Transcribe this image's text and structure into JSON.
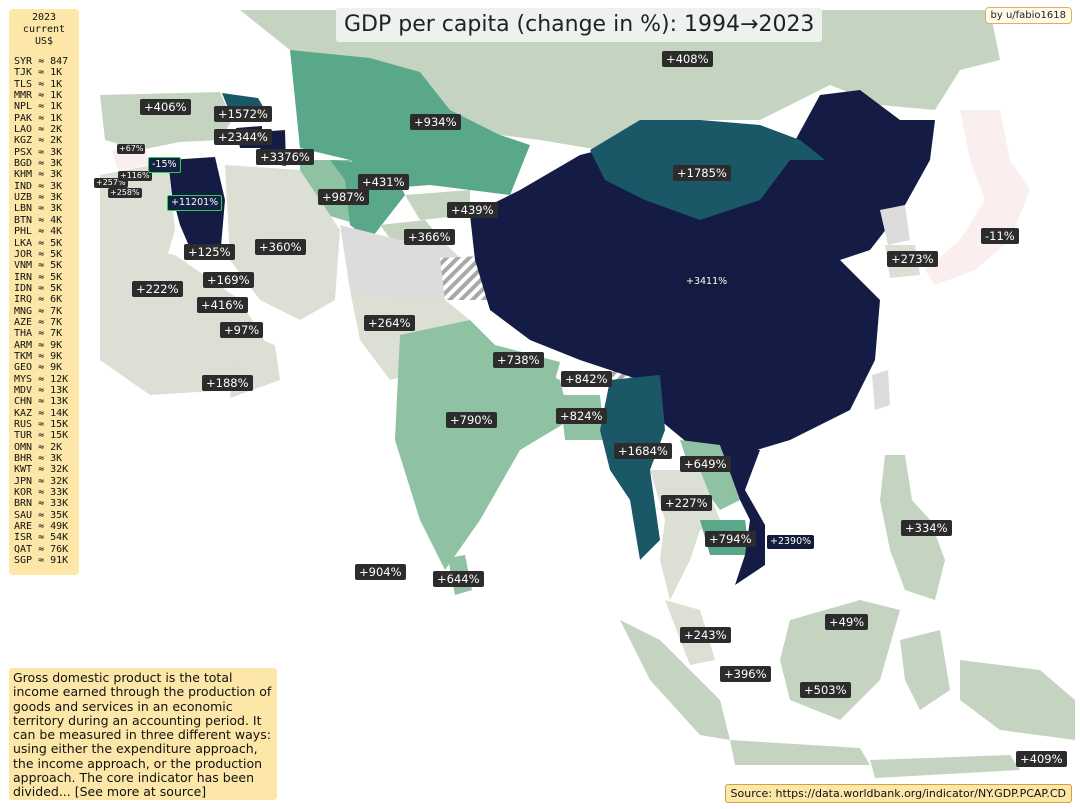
{
  "title": "GDP per capita (change in %):  1994→2023",
  "author": "by u/fabio1618",
  "legend": {
    "header": [
      "2023",
      "current",
      "US$"
    ],
    "entries": [
      "SYR ≈ 847",
      "TJK ≈ 1K",
      "TLS ≈ 1K",
      "MMR ≈ 1K",
      "NPL ≈ 1K",
      "PAK ≈ 1K",
      "LAO ≈ 2K",
      "KGZ ≈ 2K",
      "PSX ≈ 3K",
      "BGD ≈ 3K",
      "KHM ≈ 3K",
      "IND ≈ 3K",
      "UZB ≈ 3K",
      "LBN ≈ 3K",
      "BTN ≈ 4K",
      "PHL ≈ 4K",
      "LKA ≈ 5K",
      "JOR ≈ 5K",
      "VNM ≈ 5K",
      "IRN ≈ 5K",
      "IDN ≈ 5K",
      "IRQ ≈ 6K",
      "MNG ≈ 7K",
      "AZE ≈ 7K",
      "THA ≈ 7K",
      "ARM ≈ 9K",
      "TKM ≈ 9K",
      "GEO ≈ 9K",
      "MYS ≈ 12K",
      "MDV ≈ 13K",
      "CHN ≈ 13K",
      "KAZ ≈ 14K",
      "RUS ≈ 15K",
      "TUR ≈ 15K",
      "OMN ≈ 2K",
      "BHR ≈ 3K",
      "KWT ≈ 32K",
      "JPN ≈ 32K",
      "KOR ≈ 33K",
      "BRN ≈ 33K",
      "SAU ≈ 35K",
      "ARE ≈ 49K",
      "ISR ≈ 54K",
      "QAT ≈ 76K",
      "SGP ≈ 91K"
    ]
  },
  "description": "Gross domestic product is the total income earned through the production of goods and services in an economic territory during an accounting period. It can be measured in three different ways: using either the expenditure approach, the income approach, or the production approach. The core indicator has been divided... [See more at source]",
  "source": "Source: https://data.worldbank.org/indicator/NY.GDP.PCAP.CD",
  "colors": {
    "very_high": "#141c45",
    "high": "#1a5868",
    "medium": "#5aa88a",
    "medium_light": "#8ec2a2",
    "light": "#c4d4c0",
    "pale": "#dcdfd4",
    "negative": "#fbeeee",
    "no_data": "#dcdcdc",
    "label_bg": "#2c2c2c"
  },
  "labels": {
    "russia": "+408%",
    "turkey": "+406%",
    "georgia": "+1572%",
    "armenia": "+2344%",
    "azerbaijan": "+3376%",
    "kazakhstan": "+934%",
    "mongolia": "+1785%",
    "cyprus": "+67%",
    "lebanon": "+257%",
    "israel": "+116%",
    "palestine": "+258%",
    "syria": "-15%",
    "iraq": "+11201%",
    "turkmenistan": "+987%",
    "uzbekistan": "+431%",
    "kyrgyzstan": "+439%",
    "tajikistan": "+366%",
    "jordan": "+125%",
    "iran": "+360%",
    "kuwait": "+169%",
    "saudi_arabia": "+222%",
    "bahrain": "+416%",
    "qatar": "+97%",
    "oman": "+188%",
    "pakistan": "+264%",
    "nepal": "+738%",
    "bhutan": "+842%",
    "bangladesh": "+824%",
    "india": "+790%",
    "china": "+3411%",
    "myanmar": "+1684%",
    "laos": "+649%",
    "thailand": "+227%",
    "cambodia": "+794%",
    "vietnam": "+2390%",
    "south_korea": "+273%",
    "japan": "-11%",
    "philippines": "+334%",
    "maldives": "+904%",
    "sri_lanka": "+644%",
    "malaysia": "+243%",
    "brunei": "+49%",
    "singapore": "+396%",
    "indonesia": "+503%",
    "timor_leste": "+409%"
  }
}
